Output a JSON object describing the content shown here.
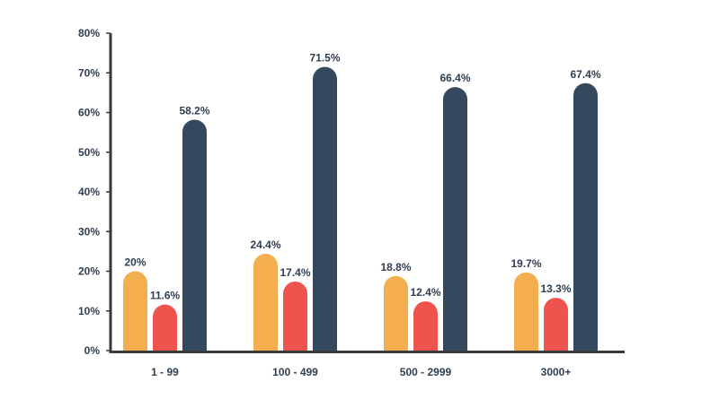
{
  "chart_data": {
    "type": "bar",
    "title": "",
    "xlabel": "",
    "ylabel": "",
    "categories": [
      "1 - 99",
      "100 - 499",
      "500 - 2999",
      "3000+"
    ],
    "series": [
      {
        "color": "#f2ae4f",
        "values": [
          20,
          24.4,
          18.8,
          19.7
        ],
        "labels": [
          "20%",
          "24.4%",
          "18.8%",
          "19.7%"
        ]
      },
      {
        "color": "#ee534e",
        "values": [
          11.6,
          17.4,
          12.4,
          13.3
        ],
        "labels": [
          "11.6%",
          "17.4%",
          "12.4%",
          "13.3%"
        ]
      },
      {
        "color": "#34495e",
        "values": [
          58.2,
          71.5,
          66.4,
          67.4
        ],
        "labels": [
          "58.2%",
          "71.5%",
          "66.4%",
          "67.4%"
        ]
      }
    ],
    "ylim": [
      0,
      80
    ],
    "yticks": [
      0,
      10,
      20,
      30,
      40,
      50,
      60,
      70,
      80
    ],
    "ytick_labels": [
      "0%",
      "10%",
      "20%",
      "30%",
      "40%",
      "50%",
      "60%",
      "70%",
      "80%"
    ],
    "grid": false,
    "axis_color": "#3a3a3a"
  }
}
